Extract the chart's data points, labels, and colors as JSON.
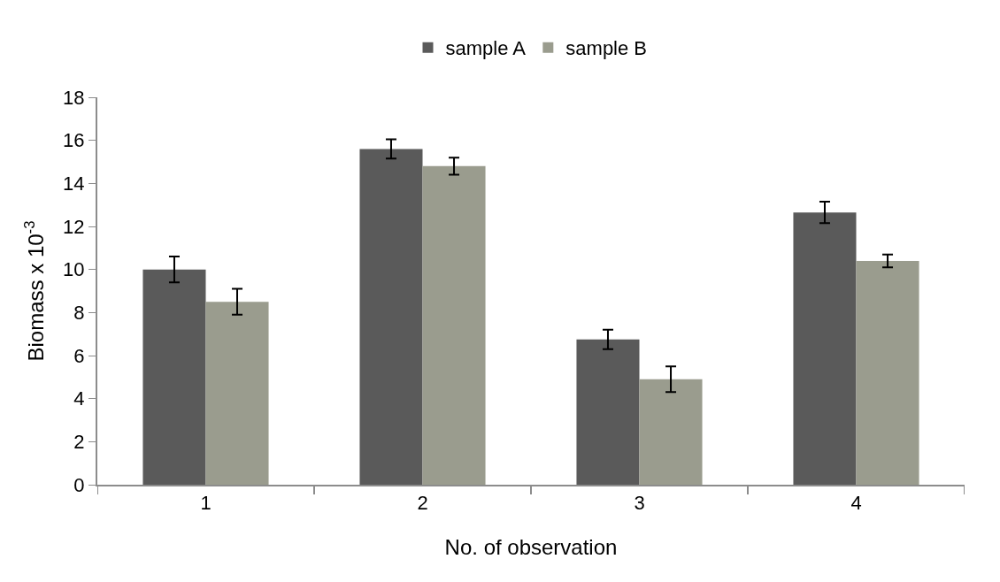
{
  "chart_data": {
    "type": "bar",
    "xlabel": "No. of observation",
    "ylabel": "Biomass x 10$^{-3}$",
    "categories": [
      "1",
      "2",
      "3",
      "4"
    ],
    "series": [
      {
        "name": "sample A",
        "color": "#5a5a5a",
        "values": [
          10.0,
          15.6,
          6.75,
          12.65
        ],
        "errors": [
          0.6,
          0.45,
          0.45,
          0.5
        ]
      },
      {
        "name": "sample B",
        "color": "#9a9c8e",
        "values": [
          8.5,
          14.8,
          4.9,
          10.4
        ],
        "errors": [
          0.6,
          0.4,
          0.6,
          0.3
        ]
      }
    ],
    "ylim": [
      0,
      18
    ],
    "yticks": [
      0,
      2,
      4,
      6,
      8,
      10,
      12,
      14,
      16,
      18
    ],
    "legend": "top"
  }
}
